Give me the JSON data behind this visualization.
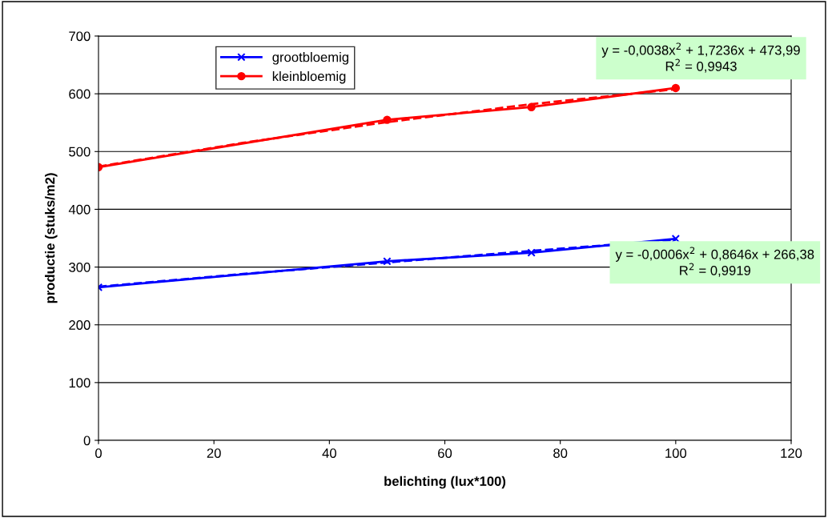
{
  "chart_data": {
    "type": "line",
    "xlabel": "belichting (lux*100)",
    "ylabel": "productie (stuks/m2)",
    "xlim": [
      0,
      120
    ],
    "xticks": [
      0,
      20,
      40,
      60,
      80,
      100,
      120
    ],
    "ylim": [
      0,
      700
    ],
    "yticks": [
      0,
      100,
      200,
      300,
      400,
      500,
      600,
      700
    ],
    "grid": "y",
    "legend": "top left",
    "line_style": "solid",
    "series": [
      {
        "name": "grootbloemig",
        "color": "#0000ff",
        "marker": "cross",
        "x": [
          0,
          50,
          75,
          100
        ],
        "values": [
          265,
          310,
          325,
          349
        ]
      },
      {
        "name": "kleinbloemig",
        "color": "#ff0000",
        "marker": "circle",
        "x": [
          0,
          50,
          75,
          100
        ],
        "values": [
          473,
          555,
          577,
          610
        ]
      },
      {
        "color": "#0000ff",
        "marker": "none",
        "line_style": "dashed",
        "x": [
          0,
          25,
          50,
          75,
          100
        ],
        "values": [
          266,
          288,
          308,
          328,
          347
        ]
      },
      {
        "color": "#ff0000",
        "marker": "none",
        "line_style": "dashed",
        "x": [
          0,
          25,
          50,
          75,
          100
        ],
        "values": [
          474,
          515,
          551,
          582,
          608
        ]
      }
    ],
    "annotations": [
      "y = -0,0006x$^{2}$ + 0,8646x + 266,38\nR$^{2}$ = 0,9919",
      "y = -0,0038x$^{2}$ + 1,7236x + 473,99\nR$^{2}$ = 0,9943"
    ]
  }
}
